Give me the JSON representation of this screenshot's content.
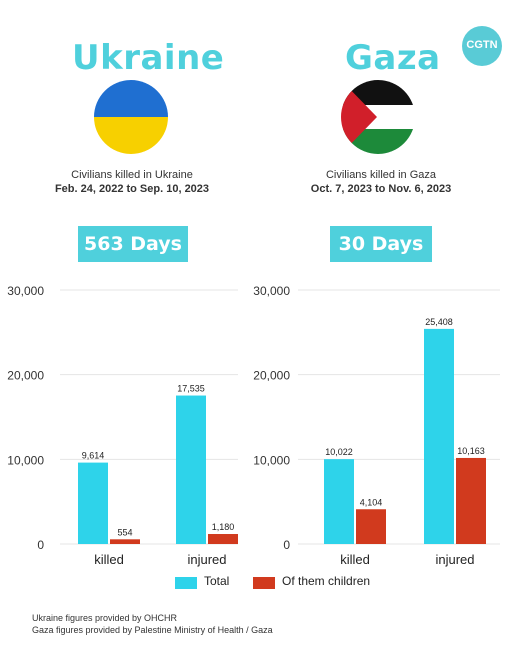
{
  "logo": {
    "text": "CGTN"
  },
  "colors": {
    "total": "#2ed3ea",
    "children": "#d13a1e",
    "title": "#4fd0dc",
    "grid": "#e5e5e5"
  },
  "ukraine": {
    "title": "Ukraine",
    "caption": "Civilians killed in Ukraine",
    "range": "Feb. 24, 2022 to Sep. 10, 2023",
    "days": "563 Days"
  },
  "gaza": {
    "title": "Gaza",
    "caption": "Civilians killed in Gaza",
    "range": "Oct. 7, 2023 to Nov. 6, 2023",
    "days": "30 Days"
  },
  "legend": {
    "total": "Total",
    "children": "Of them children"
  },
  "footer": {
    "line1": "Ukraine figures provided by OHCHR",
    "line2": "Gaza figures provided by Palestine Ministry of Health / Gaza"
  },
  "chart_data": [
    {
      "type": "bar",
      "categories": [
        "killed",
        "injured"
      ],
      "series": [
        {
          "name": "Total",
          "values": [
            9614,
            17535
          ],
          "labels": [
            "9,614",
            "17,535"
          ]
        },
        {
          "name": "Of them children",
          "values": [
            554,
            1180
          ],
          "labels": [
            "554",
            "1,180"
          ]
        }
      ],
      "ylim": [
        0,
        30000
      ],
      "yticks": [
        "0",
        "10,000",
        "20,000",
        "30,000"
      ],
      "grid": true
    },
    {
      "type": "bar",
      "categories": [
        "killed",
        "injured"
      ],
      "series": [
        {
          "name": "Total",
          "values": [
            10022,
            25408
          ],
          "labels": [
            "10,022",
            "25,408"
          ]
        },
        {
          "name": "Of them children",
          "values": [
            4104,
            10163
          ],
          "labels": [
            "4,104",
            "10,163"
          ]
        }
      ],
      "ylim": [
        0,
        30000
      ],
      "yticks": [
        "0",
        "10,000",
        "20,000",
        "30,000"
      ],
      "grid": true
    }
  ]
}
